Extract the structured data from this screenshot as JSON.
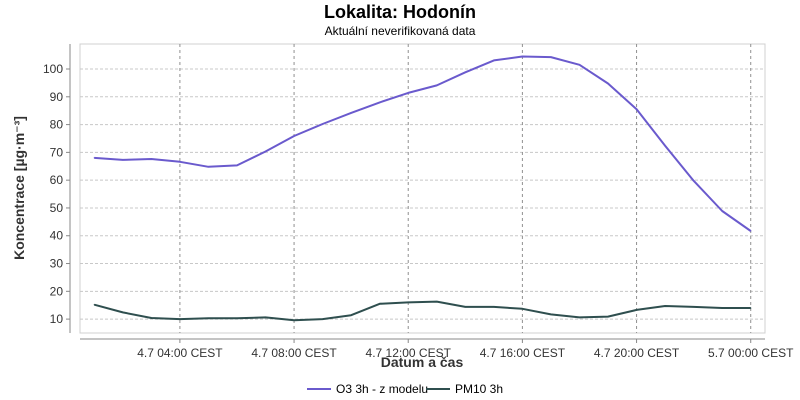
{
  "chart_data": {
    "type": "line",
    "title": "Lokalita: Hodonín",
    "subtitle": "Aktuální neverifikovaná data",
    "xlabel": "Datum a čas",
    "ylabel": "Koncentrace [µg·m⁻³]",
    "x_tick_labels": [
      "4.7 04:00 CEST",
      "4.7 08:00 CEST",
      "4.7 12:00 CEST",
      "4.7 16:00 CEST",
      "4.7 20:00 CEST",
      "5.7 00:00 CEST"
    ],
    "x_tick_hours": [
      4,
      8,
      12,
      16,
      20,
      24
    ],
    "x_hours": [
      1,
      2,
      3,
      4,
      5,
      6,
      7,
      8,
      9,
      10,
      11,
      12,
      13,
      14,
      15,
      16,
      17,
      18,
      19,
      20,
      21,
      22,
      23,
      24
    ],
    "xlim_hours": [
      0.5,
      24.5
    ],
    "y_ticks": [
      10,
      20,
      30,
      40,
      50,
      60,
      70,
      80,
      90,
      100
    ],
    "ylim": [
      5,
      109
    ],
    "grid": true,
    "legend_position": "bottom",
    "series": [
      {
        "name": "O3 3h - z modelu",
        "color": "#6a5acd",
        "values": [
          68,
          67.3,
          67.6,
          66.6,
          64.8,
          65.3,
          70.3,
          75.9,
          80.2,
          84.2,
          88,
          91.4,
          94.1,
          98.8,
          103.1,
          104.5,
          104.3,
          101.5,
          94.8,
          85.5,
          72.4,
          59.8,
          48.9,
          41.7
        ]
      },
      {
        "name": "PM10 3h",
        "color": "#2f4f4f",
        "values": [
          15.2,
          12.4,
          10.4,
          10,
          10.3,
          10.3,
          10.6,
          9.6,
          10,
          11.4,
          15.5,
          16,
          16.3,
          14.4,
          14.4,
          13.7,
          11.7,
          10.6,
          10.9,
          13.3,
          14.7,
          14.4,
          14,
          14
        ]
      }
    ]
  }
}
